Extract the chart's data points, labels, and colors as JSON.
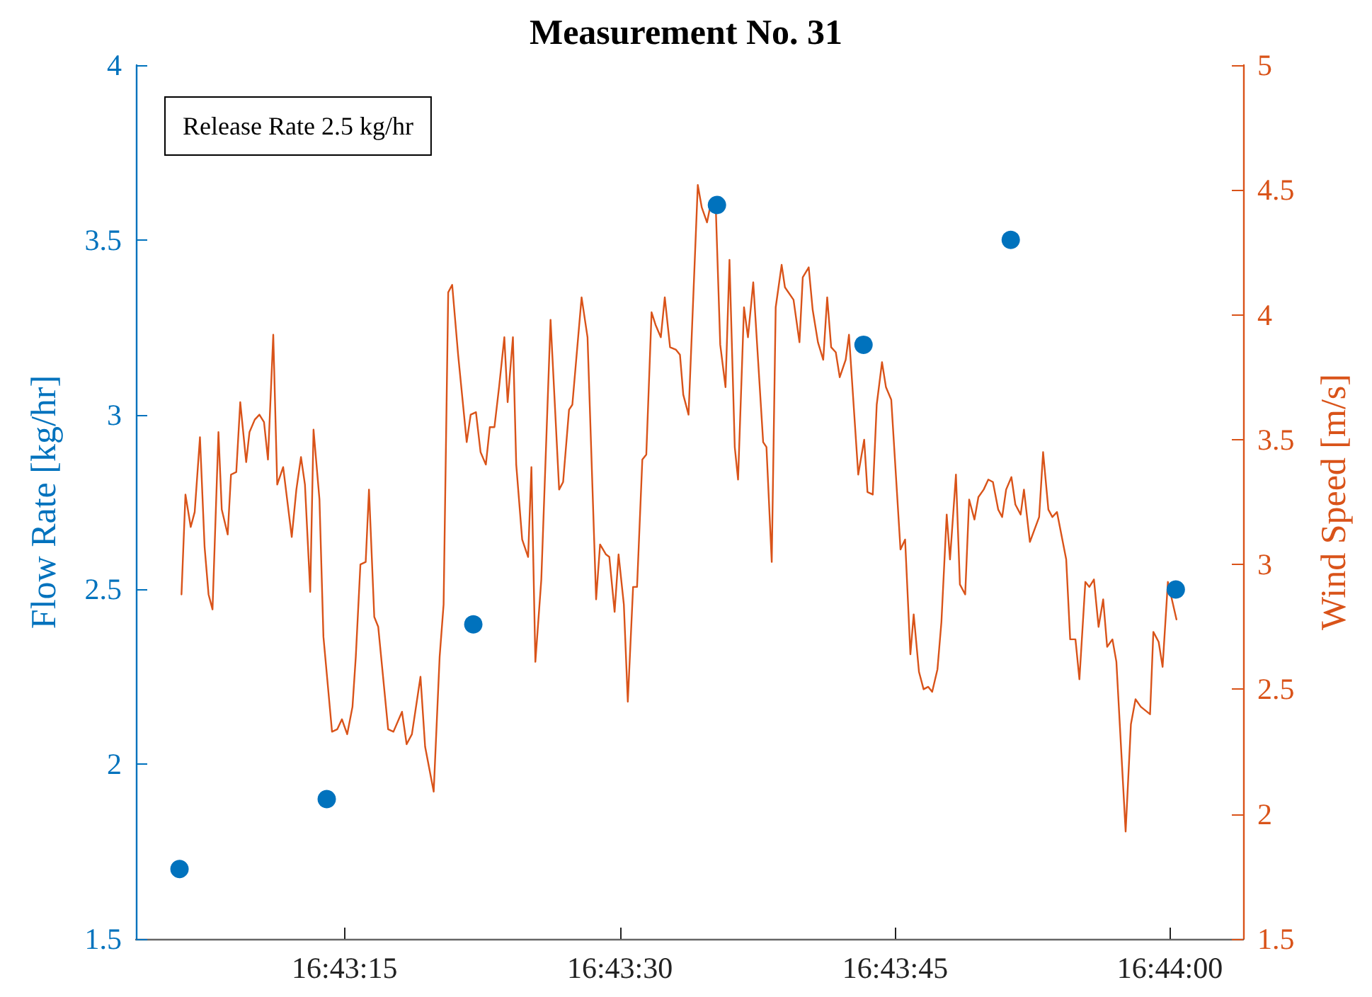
{
  "chart_data": {
    "type": "line",
    "title": "Measurement No. 31",
    "ylabel": "Flow Rate [kg/hr]",
    "y2label": "Wind Speed [m/s]",
    "annotations": [
      "Release Rate 2.5 kg/hr"
    ],
    "xlim": [
      16.71767,
      16.73444
    ],
    "xticks": [
      {
        "value": 16.72083,
        "label": "16:43:15"
      },
      {
        "value": 16.725,
        "label": "16:43:30"
      },
      {
        "value": 16.72917,
        "label": "16:43:45"
      },
      {
        "value": 16.73333,
        "label": "16:44:00"
      }
    ],
    "ylim": [
      1.5,
      4
    ],
    "yticks": [
      1.5,
      2,
      2.5,
      3,
      3.5,
      4
    ],
    "y2lim": [
      1.5,
      5
    ],
    "y2ticks": [
      1.5,
      2,
      2.5,
      3,
      3.5,
      4,
      4.5,
      5
    ],
    "grid": false,
    "series": [
      {
        "type": "line",
        "axis": "y2",
        "color": "#d95319",
        "marker": "none",
        "line_style": "solid",
        "x": [
          16.71836,
          16.71842,
          16.7185,
          16.71856,
          16.71864,
          16.71871,
          16.71877,
          16.71883,
          16.71892,
          16.71897,
          16.71906,
          16.71911,
          16.71919,
          16.71925,
          16.71934,
          16.71939,
          16.71947,
          16.71954,
          16.71961,
          16.71967,
          16.71975,
          16.71981,
          16.7199,
          16.72003,
          16.7201,
          16.72017,
          16.72023,
          16.72031,
          16.72036,
          16.72045,
          16.72051,
          16.72064,
          16.72072,
          16.72079,
          16.72087,
          16.72095,
          16.721,
          16.72107,
          16.72115,
          16.7212,
          16.72128,
          16.72134,
          16.72149,
          16.72157,
          16.7217,
          16.72177,
          16.72185,
          16.72198,
          16.72205,
          16.72218,
          16.72227,
          16.72233,
          16.7224,
          16.72246,
          16.72255,
          16.72268,
          16.72274,
          16.72282,
          16.72289,
          16.72297,
          16.72303,
          16.7231,
          16.72317,
          16.72325,
          16.7233,
          16.72338,
          16.72343,
          16.72352,
          16.72361,
          16.72366,
          16.72372,
          16.72381,
          16.72395,
          16.72408,
          16.72414,
          16.72423,
          16.72428,
          16.72442,
          16.72451,
          16.72464,
          16.7247,
          16.72479,
          16.72484,
          16.72492,
          16.72498,
          16.72506,
          16.72512,
          16.7252,
          16.72526,
          16.72534,
          16.7254,
          16.72548,
          16.72554,
          16.72562,
          16.72568,
          16.72576,
          16.72585,
          16.72591,
          16.72596,
          16.72604,
          16.72618,
          16.72624,
          16.72632,
          16.72638,
          16.72645,
          16.72652,
          16.7266,
          16.72666,
          16.72674,
          16.72679,
          16.72688,
          16.72694,
          16.72702,
          16.72717,
          16.72722,
          16.7273,
          16.72736,
          16.72745,
          16.7275,
          16.72763,
          16.72772,
          16.72777,
          16.72786,
          16.72792,
          16.728,
          16.72808,
          16.72814,
          16.7282,
          16.72827,
          16.72833,
          16.72842,
          16.72847,
          16.72861,
          16.7287,
          16.72875,
          16.72883,
          16.72889,
          16.72897,
          16.72903,
          16.72911,
          16.72925,
          16.72932,
          16.7294,
          16.72945,
          16.72953,
          16.7296,
          16.72967,
          16.72973,
          16.72981,
          16.72987,
          16.72995,
          16.73,
          16.73009,
          16.73015,
          16.73023,
          16.73029,
          16.73037,
          16.73043,
          16.73051,
          16.73058,
          16.73065,
          16.73073,
          16.73079,
          16.73085,
          16.73093,
          16.73099,
          16.73107,
          16.73112,
          16.73121,
          16.73135,
          16.73141,
          16.73149,
          16.73155,
          16.73162,
          16.73176,
          16.73182,
          16.7319,
          16.73196,
          16.73205,
          16.73211,
          16.73218,
          16.73225,
          16.73232,
          16.73238,
          16.73246,
          16.73252,
          16.73266,
          16.73274,
          16.73281,
          16.73289,
          16.73303,
          16.73308,
          16.73316,
          16.73322,
          16.7333,
          16.73343
        ],
        "values": [
          2.88,
          3.28,
          3.15,
          3.21,
          3.51,
          3.07,
          2.88,
          2.82,
          3.53,
          3.22,
          3.12,
          3.36,
          3.37,
          3.65,
          3.41,
          3.53,
          3.58,
          3.6,
          3.57,
          3.42,
          3.92,
          3.32,
          3.39,
          3.11,
          3.3,
          3.43,
          3.32,
          2.89,
          3.54,
          3.26,
          2.71,
          2.33,
          2.34,
          2.38,
          2.32,
          2.43,
          2.63,
          3.0,
          3.01,
          3.3,
          2.79,
          2.75,
          2.34,
          2.33,
          2.41,
          2.28,
          2.32,
          2.55,
          2.27,
          2.09,
          2.63,
          2.84,
          4.09,
          4.12,
          3.84,
          3.49,
          3.6,
          3.61,
          3.45,
          3.4,
          3.55,
          3.55,
          3.71,
          3.91,
          3.65,
          3.91,
          3.4,
          3.1,
          3.03,
          3.39,
          2.61,
          2.94,
          3.98,
          3.3,
          3.33,
          3.62,
          3.64,
          4.07,
          3.91,
          2.86,
          3.08,
          3.04,
          3.03,
          2.81,
          3.04,
          2.84,
          2.45,
          2.91,
          2.91,
          3.42,
          3.44,
          4.01,
          3.96,
          3.91,
          4.07,
          3.87,
          3.86,
          3.84,
          3.68,
          3.6,
          4.52,
          4.43,
          4.37,
          4.45,
          4.45,
          3.88,
          3.71,
          4.22,
          3.47,
          3.34,
          4.03,
          3.91,
          4.13,
          3.49,
          3.47,
          3.01,
          4.03,
          4.2,
          4.11,
          4.06,
          3.89,
          4.15,
          4.19,
          4.02,
          3.89,
          3.82,
          4.07,
          3.87,
          3.85,
          3.75,
          3.82,
          3.92,
          3.36,
          3.5,
          3.29,
          3.28,
          3.64,
          3.81,
          3.71,
          3.66,
          3.06,
          3.1,
          2.64,
          2.8,
          2.57,
          2.5,
          2.51,
          2.49,
          2.58,
          2.77,
          3.2,
          3.02,
          3.36,
          2.92,
          2.88,
          3.26,
          3.18,
          3.27,
          3.3,
          3.34,
          3.33,
          3.22,
          3.19,
          3.3,
          3.35,
          3.24,
          3.2,
          3.3,
          3.09,
          3.19,
          3.45,
          3.22,
          3.19,
          3.21,
          3.02,
          2.7,
          2.7,
          2.54,
          2.93,
          2.91,
          2.94,
          2.75,
          2.86,
          2.67,
          2.7,
          2.61,
          1.93,
          2.36,
          2.46,
          2.43,
          2.4,
          2.73,
          2.69,
          2.59,
          2.93,
          2.78
        ]
      },
      {
        "type": "scatter",
        "color": "#0072bd",
        "marker": "circle",
        "x": [
          16.71833,
          16.72056,
          16.72278,
          16.72647,
          16.72869,
          16.73092,
          16.73342
        ],
        "values": [
          1.7,
          1.9,
          2.4,
          3.6,
          3.2,
          3.5,
          2.5
        ]
      }
    ]
  }
}
